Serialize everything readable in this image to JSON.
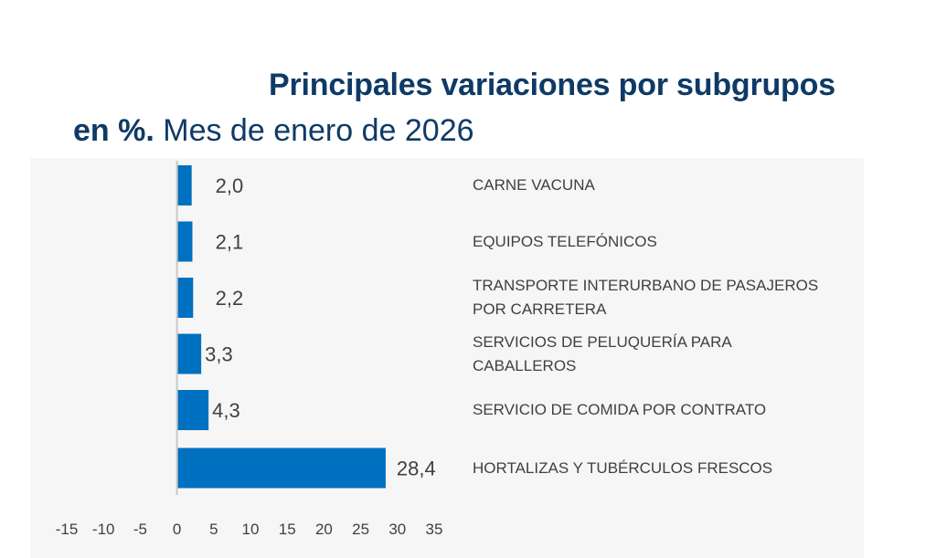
{
  "title": {
    "line1": "Principales variaciones por subgrupos",
    "line2_bold": "en %.",
    "line2_rest": " Mes de enero de 2026"
  },
  "chart_data": {
    "type": "bar",
    "orientation": "horizontal",
    "title": "Principales variaciones por subgrupos en %. Mes de enero de 2026",
    "xlabel": "",
    "ylabel": "",
    "categories": [
      "CARNE VACUNA",
      "EQUIPOS TELEFÓNICOS",
      "TRANSPORTE INTERURBANO DE PASAJEROS POR CARRETERA",
      "SERVICIOS DE PELUQUERÍA PARA CABALLEROS",
      "SERVICIO DE COMIDA POR CONTRATO",
      "HORTALIZAS Y TUBÉRCULOS FRESCOS"
    ],
    "category_lines": [
      [
        "CARNE VACUNA"
      ],
      [
        "EQUIPOS TELEFÓNICOS"
      ],
      [
        "TRANSPORTE INTERURBANO DE PASAJEROS",
        "POR CARRETERA"
      ],
      [
        "SERVICIOS DE PELUQUERÍA PARA",
        "CABALLEROS"
      ],
      [
        "SERVICIO DE COMIDA POR CONTRATO"
      ],
      [
        "HORTALIZAS Y TUBÉRCULOS FRESCOS"
      ]
    ],
    "values": [
      2.0,
      2.1,
      2.2,
      3.3,
      4.3,
      28.4
    ],
    "value_labels": [
      "2,0",
      "2,1",
      "2,2",
      "3,3",
      "4,3",
      "28,4"
    ],
    "xlim": [
      -15,
      35
    ],
    "xticks": [
      -15,
      -10,
      -5,
      0,
      5,
      10,
      15,
      20,
      25,
      30,
      35
    ],
    "xtick_labels": [
      "-15",
      "-10",
      "-5",
      "0",
      "5",
      "10",
      "15",
      "20",
      "25",
      "30",
      "35"
    ],
    "grid": false,
    "legend": "none",
    "bar_color": "#0070c0"
  },
  "colors": {
    "title": "#0f3a66",
    "panel_bg": "#f6f6f6",
    "bar": "#0070c0",
    "axis": "#c8c8c8",
    "text": "#404040"
  }
}
